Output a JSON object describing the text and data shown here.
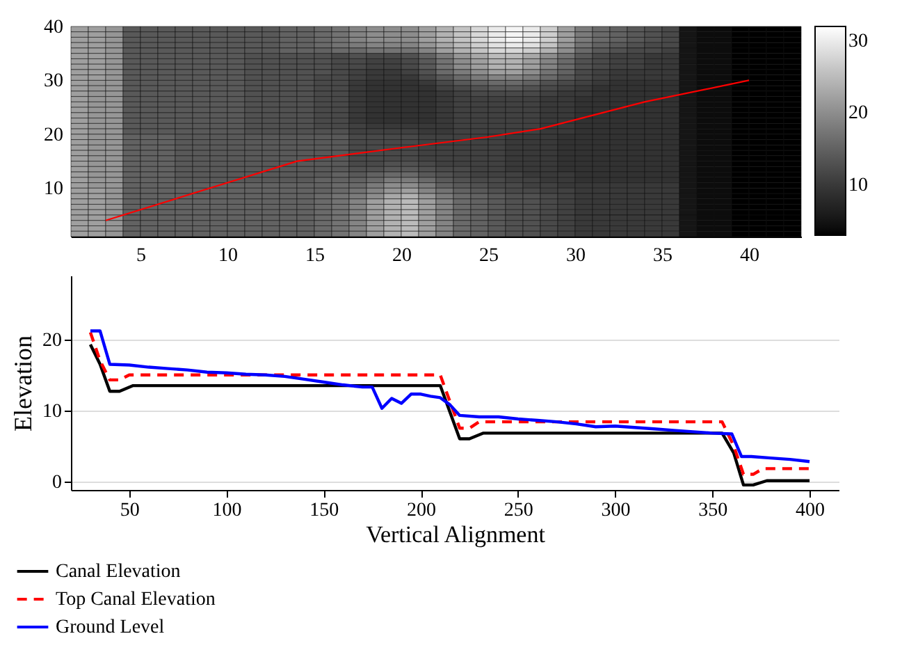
{
  "chart_data": [
    {
      "type": "heatmap",
      "xlim": [
        1,
        43
      ],
      "ylim": [
        1,
        40
      ],
      "xticks": [
        5,
        10,
        15,
        20,
        25,
        30,
        35,
        40
      ],
      "yticks": [
        10,
        20,
        30,
        40
      ],
      "clim": [
        3,
        32
      ],
      "cticks": [
        10,
        20,
        30
      ],
      "cells": [
        [
          22,
          22,
          21,
          14,
          14,
          14,
          14,
          14,
          14,
          14,
          14,
          14,
          15,
          15,
          16,
          17,
          19,
          20,
          20,
          20,
          22,
          24,
          26,
          28,
          30,
          31,
          30,
          27,
          22,
          18,
          16,
          15,
          14,
          13,
          12,
          5,
          4,
          4,
          3,
          3,
          3,
          3
        ],
        [
          22,
          22,
          21,
          14,
          14,
          14,
          14,
          14,
          14,
          14,
          14,
          14,
          15,
          15,
          16,
          17,
          19,
          20,
          20,
          20,
          22,
          24,
          26,
          28,
          30,
          31,
          30,
          27,
          22,
          18,
          16,
          15,
          14,
          13,
          12,
          5,
          4,
          4,
          3,
          3,
          3,
          3
        ],
        [
          22,
          22,
          21,
          14,
          14,
          14,
          14,
          14,
          14,
          14,
          14,
          14,
          15,
          15,
          16,
          17,
          19,
          20,
          20,
          20,
          22,
          24,
          26,
          28,
          30,
          31,
          30,
          27,
          22,
          18,
          16,
          15,
          14,
          13,
          12,
          5,
          4,
          4,
          3,
          3,
          3,
          3
        ],
        [
          22,
          22,
          21,
          14,
          14,
          14,
          14,
          14,
          14,
          14,
          14,
          14,
          15,
          15,
          16,
          17,
          18,
          19,
          19,
          19,
          21,
          23,
          25,
          27,
          29,
          30,
          29,
          26,
          21,
          17,
          15,
          14,
          13,
          12,
          12,
          5,
          4,
          4,
          3,
          3,
          3,
          3
        ],
        [
          22,
          22,
          21,
          14,
          14,
          14,
          14,
          14,
          14,
          14,
          14,
          14,
          15,
          15,
          15,
          16,
          16,
          17,
          17,
          17,
          19,
          22,
          24,
          26,
          28,
          28,
          27,
          24,
          20,
          16,
          14,
          13,
          12,
          12,
          11,
          5,
          4,
          4,
          3,
          3,
          3,
          3
        ],
        [
          22,
          22,
          21,
          14,
          14,
          14,
          14,
          14,
          14,
          14,
          13,
          13,
          13,
          13,
          13,
          12,
          13,
          12,
          12,
          13,
          15,
          18,
          21,
          23,
          25,
          25,
          23,
          20,
          17,
          14,
          12,
          11,
          11,
          10,
          10,
          5,
          4,
          4,
          3,
          3,
          3,
          3
        ],
        [
          22,
          22,
          21,
          14,
          14,
          14,
          14,
          14,
          14,
          14,
          13,
          13,
          13,
          13,
          13,
          12,
          12,
          11,
          11,
          12,
          14,
          17,
          20,
          22,
          24,
          24,
          22,
          19,
          16,
          13,
          12,
          11,
          11,
          10,
          10,
          5,
          4,
          4,
          3,
          3,
          3,
          3
        ],
        [
          22,
          22,
          21,
          14,
          14,
          14,
          14,
          14,
          14,
          14,
          13,
          13,
          13,
          13,
          13,
          12,
          12,
          11,
          11,
          12,
          14,
          17,
          20,
          22,
          24,
          24,
          22,
          19,
          16,
          13,
          12,
          11,
          11,
          10,
          10,
          5,
          4,
          4,
          3,
          3,
          3,
          3
        ],
        [
          22,
          22,
          21,
          14,
          14,
          14,
          14,
          14,
          14,
          14,
          13,
          13,
          13,
          13,
          13,
          12,
          11,
          10,
          10,
          11,
          13,
          16,
          18,
          20,
          22,
          22,
          20,
          17,
          15,
          12,
          11,
          10,
          10,
          10,
          10,
          5,
          4,
          4,
          3,
          3,
          3,
          3
        ],
        [
          22,
          22,
          21,
          14,
          14,
          14,
          14,
          14,
          14,
          14,
          13,
          13,
          13,
          13,
          12,
          12,
          11,
          10,
          10,
          10,
          12,
          14,
          16,
          18,
          19,
          19,
          18,
          16,
          14,
          12,
          11,
          10,
          10,
          10,
          10,
          5,
          4,
          4,
          3,
          3,
          3,
          3
        ],
        [
          22,
          21,
          21,
          14,
          14,
          14,
          14,
          14,
          14,
          14,
          13,
          13,
          13,
          13,
          12,
          12,
          10,
          9,
          9,
          9,
          10,
          12,
          14,
          15,
          16,
          16,
          15,
          13,
          12,
          11,
          10,
          9,
          9,
          9,
          9,
          5,
          4,
          4,
          3,
          3,
          3,
          3
        ],
        [
          22,
          21,
          21,
          14,
          14,
          14,
          14,
          14,
          14,
          14,
          13,
          13,
          13,
          13,
          12,
          12,
          10,
          9,
          9,
          9,
          9,
          11,
          12,
          13,
          14,
          14,
          13,
          12,
          11,
          10,
          9,
          9,
          9,
          9,
          9,
          5,
          4,
          4,
          3,
          3,
          3,
          3
        ],
        [
          22,
          21,
          21,
          14,
          14,
          14,
          14,
          14,
          14,
          14,
          13,
          13,
          13,
          13,
          12,
          12,
          10,
          9,
          9,
          9,
          9,
          10,
          11,
          12,
          12,
          12,
          12,
          11,
          10,
          10,
          9,
          9,
          9,
          9,
          9,
          5,
          4,
          4,
          3,
          3,
          3,
          3
        ],
        [
          22,
          21,
          21,
          14,
          14,
          14,
          14,
          14,
          14,
          14,
          13,
          13,
          13,
          13,
          12,
          12,
          10,
          9,
          9,
          9,
          9,
          10,
          11,
          11,
          11,
          11,
          11,
          10,
          10,
          9,
          9,
          9,
          9,
          9,
          9,
          5,
          4,
          4,
          3,
          3,
          3,
          3
        ],
        [
          22,
          21,
          21,
          14,
          14,
          14,
          14,
          14,
          14,
          14,
          13,
          13,
          13,
          13,
          12,
          12,
          10,
          9,
          9,
          9,
          9,
          10,
          11,
          11,
          11,
          11,
          11,
          10,
          10,
          9,
          9,
          9,
          9,
          9,
          9,
          5,
          4,
          4,
          3,
          3,
          3,
          3
        ],
        [
          22,
          21,
          21,
          14,
          14,
          14,
          14,
          14,
          14,
          14,
          13,
          13,
          13,
          13,
          12,
          12,
          10,
          9,
          9,
          9,
          9,
          10,
          11,
          11,
          11,
          11,
          11,
          10,
          10,
          9,
          9,
          9,
          9,
          9,
          9,
          5,
          4,
          4,
          3,
          3,
          3,
          3
        ],
        [
          22,
          21,
          21,
          14,
          14,
          14,
          14,
          14,
          14,
          14,
          13,
          13,
          13,
          13,
          12,
          12,
          10,
          9,
          9,
          9,
          9,
          10,
          11,
          11,
          11,
          11,
          11,
          10,
          10,
          9,
          9,
          9,
          9,
          9,
          9,
          5,
          4,
          4,
          3,
          3,
          3,
          3
        ],
        [
          22,
          21,
          21,
          14,
          14,
          14,
          14,
          14,
          14,
          14,
          13,
          13,
          13,
          13,
          12,
          12,
          10,
          9,
          9,
          9,
          9,
          10,
          11,
          11,
          11,
          11,
          11,
          10,
          10,
          9,
          9,
          9,
          9,
          9,
          9,
          5,
          4,
          4,
          3,
          3,
          3,
          3
        ],
        [
          22,
          21,
          21,
          14,
          14,
          14,
          14,
          14,
          14,
          14,
          13,
          13,
          13,
          13,
          12,
          12,
          11,
          10,
          10,
          10,
          10,
          10,
          11,
          11,
          11,
          11,
          11,
          10,
          10,
          9,
          9,
          9,
          9,
          9,
          9,
          5,
          4,
          4,
          3,
          3,
          3,
          3
        ],
        [
          22,
          21,
          21,
          14,
          14,
          14,
          14,
          14,
          14,
          14,
          13,
          13,
          13,
          13,
          13,
          13,
          11,
          11,
          11,
          11,
          10,
          10,
          11,
          11,
          11,
          11,
          11,
          10,
          10,
          9,
          9,
          9,
          9,
          9,
          9,
          5,
          4,
          4,
          3,
          3,
          3,
          3
        ],
        [
          22,
          21,
          21,
          15,
          15,
          15,
          14,
          14,
          14,
          14,
          14,
          14,
          14,
          14,
          14,
          14,
          12,
          12,
          12,
          12,
          11,
          11,
          11,
          11,
          11,
          10,
          10,
          10,
          9,
          9,
          9,
          9,
          9,
          9,
          9,
          5,
          4,
          4,
          3,
          3,
          3,
          3
        ],
        [
          22,
          21,
          21,
          15,
          15,
          15,
          14,
          14,
          14,
          14,
          14,
          14,
          14,
          14,
          14,
          14,
          12,
          12,
          12,
          12,
          11,
          11,
          11,
          11,
          11,
          10,
          10,
          10,
          9,
          9,
          9,
          9,
          9,
          9,
          9,
          5,
          4,
          4,
          3,
          3,
          3,
          3
        ],
        [
          22,
          21,
          21,
          15,
          15,
          15,
          14,
          14,
          14,
          14,
          14,
          14,
          14,
          14,
          14,
          14,
          12,
          12,
          12,
          12,
          11,
          11,
          11,
          11,
          11,
          10,
          10,
          10,
          9,
          9,
          9,
          9,
          9,
          9,
          9,
          5,
          4,
          4,
          3,
          3,
          3,
          3
        ],
        [
          22,
          21,
          21,
          15,
          15,
          15,
          14,
          14,
          14,
          14,
          14,
          14,
          14,
          14,
          14,
          14,
          12,
          12,
          12,
          12,
          11,
          11,
          11,
          11,
          11,
          10,
          10,
          10,
          9,
          9,
          9,
          9,
          9,
          9,
          9,
          5,
          4,
          4,
          3,
          3,
          3,
          3
        ],
        [
          22,
          21,
          21,
          15,
          15,
          15,
          14,
          14,
          14,
          14,
          14,
          14,
          14,
          14,
          14,
          14,
          12,
          12,
          12,
          12,
          11,
          11,
          11,
          11,
          11,
          10,
          10,
          10,
          9,
          9,
          9,
          9,
          9,
          9,
          9,
          5,
          4,
          4,
          3,
          3,
          3,
          3
        ],
        [
          22,
          21,
          21,
          15,
          15,
          15,
          14,
          14,
          14,
          14,
          14,
          14,
          14,
          14,
          14,
          14,
          12,
          12,
          13,
          13,
          12,
          11,
          11,
          11,
          11,
          10,
          10,
          10,
          9,
          9,
          9,
          9,
          9,
          9,
          9,
          5,
          4,
          4,
          3,
          3,
          3,
          3
        ],
        [
          22,
          21,
          21,
          15,
          15,
          15,
          14,
          14,
          14,
          14,
          14,
          14,
          14,
          14,
          14,
          14,
          13,
          13,
          14,
          14,
          13,
          12,
          12,
          11,
          11,
          10,
          10,
          10,
          9,
          9,
          9,
          9,
          9,
          9,
          9,
          5,
          4,
          4,
          3,
          3,
          3,
          3
        ],
        [
          22,
          21,
          21,
          15,
          15,
          15,
          14,
          14,
          14,
          14,
          14,
          14,
          14,
          14,
          14,
          15,
          14,
          15,
          16,
          16,
          14,
          13,
          12,
          11,
          11,
          11,
          10,
          10,
          10,
          9,
          9,
          9,
          9,
          9,
          9,
          5,
          4,
          4,
          3,
          3,
          3,
          3
        ],
        [
          22,
          21,
          21,
          15,
          15,
          15,
          14,
          14,
          14,
          14,
          14,
          14,
          14,
          14,
          15,
          15,
          15,
          16,
          18,
          18,
          16,
          14,
          13,
          12,
          12,
          11,
          11,
          10,
          10,
          9,
          9,
          9,
          9,
          9,
          9,
          5,
          4,
          4,
          3,
          3,
          3,
          3
        ],
        [
          22,
          21,
          21,
          15,
          15,
          15,
          15,
          15,
          15,
          15,
          15,
          15,
          15,
          15,
          15,
          16,
          16,
          18,
          20,
          20,
          18,
          15,
          14,
          13,
          12,
          12,
          11,
          11,
          10,
          10,
          10,
          10,
          10,
          10,
          10,
          5,
          4,
          4,
          3,
          3,
          3,
          3
        ],
        [
          22,
          22,
          21,
          15,
          15,
          15,
          15,
          15,
          15,
          15,
          15,
          15,
          15,
          15,
          15,
          16,
          17,
          19,
          21,
          22,
          19,
          17,
          15,
          14,
          13,
          12,
          12,
          11,
          11,
          10,
          10,
          10,
          10,
          10,
          10,
          5,
          4,
          4,
          3,
          3,
          3,
          3
        ],
        [
          22,
          22,
          21,
          15,
          15,
          15,
          15,
          15,
          15,
          15,
          15,
          15,
          15,
          15,
          16,
          17,
          18,
          20,
          23,
          24,
          21,
          18,
          16,
          15,
          14,
          13,
          13,
          12,
          11,
          10,
          10,
          10,
          10,
          10,
          10,
          5,
          4,
          4,
          3,
          3,
          3,
          3
        ],
        [
          22,
          22,
          21,
          15,
          15,
          15,
          15,
          15,
          15,
          15,
          15,
          15,
          15,
          15,
          16,
          17,
          19,
          22,
          24,
          25,
          22,
          19,
          16,
          15,
          14,
          13,
          13,
          12,
          11,
          10,
          10,
          10,
          10,
          10,
          10,
          5,
          4,
          4,
          3,
          3,
          3,
          3
        ],
        [
          22,
          22,
          21,
          15,
          15,
          15,
          15,
          15,
          15,
          15,
          15,
          15,
          15,
          15,
          16,
          17,
          19,
          22,
          24,
          25,
          22,
          19,
          16,
          15,
          14,
          13,
          13,
          12,
          11,
          10,
          10,
          10,
          10,
          10,
          10,
          5,
          4,
          4,
          3,
          3,
          3,
          3
        ],
        [
          22,
          22,
          21,
          15,
          15,
          15,
          15,
          15,
          15,
          15,
          15,
          15,
          15,
          15,
          16,
          17,
          19,
          22,
          24,
          25,
          22,
          19,
          16,
          15,
          14,
          13,
          13,
          12,
          11,
          10,
          10,
          10,
          10,
          10,
          10,
          5,
          4,
          4,
          3,
          3,
          3,
          3
        ],
        [
          22,
          22,
          21,
          15,
          15,
          15,
          15,
          15,
          15,
          15,
          15,
          15,
          15,
          15,
          16,
          17,
          19,
          22,
          24,
          25,
          22,
          19,
          16,
          15,
          14,
          13,
          13,
          12,
          11,
          10,
          10,
          10,
          10,
          10,
          10,
          5,
          4,
          4,
          3,
          3,
          3,
          3
        ],
        [
          22,
          22,
          21,
          15,
          15,
          15,
          15,
          15,
          15,
          15,
          15,
          15,
          15,
          15,
          16,
          17,
          19,
          22,
          24,
          25,
          22,
          19,
          16,
          15,
          14,
          13,
          13,
          12,
          11,
          10,
          10,
          10,
          10,
          10,
          10,
          5,
          4,
          4,
          3,
          3,
          3,
          3
        ],
        [
          22,
          22,
          21,
          15,
          15,
          15,
          15,
          15,
          15,
          15,
          15,
          15,
          15,
          15,
          16,
          17,
          19,
          22,
          24,
          25,
          22,
          19,
          16,
          15,
          14,
          13,
          13,
          12,
          11,
          10,
          10,
          10,
          10,
          10,
          10,
          5,
          4,
          4,
          3,
          3,
          3,
          3
        ],
        [
          22,
          22,
          21,
          15,
          15,
          15,
          15,
          15,
          15,
          15,
          15,
          15,
          15,
          15,
          16,
          17,
          19,
          22,
          24,
          25,
          22,
          19,
          16,
          15,
          14,
          13,
          13,
          12,
          11,
          10,
          10,
          10,
          10,
          10,
          10,
          5,
          4,
          4,
          3,
          3,
          3,
          3
        ]
      ],
      "series": [
        {
          "type": "line",
          "color": "#ff0000",
          "x": [
            3,
            9,
            14,
            20,
            25,
            28,
            34,
            40
          ],
          "values": [
            4,
            10,
            15,
            17.5,
            19.5,
            21,
            26,
            30
          ]
        }
      ]
    },
    {
      "type": "line",
      "xlabel": "Vertical Alignment",
      "ylabel": "Elevation",
      "xlim": [
        20,
        415
      ],
      "ylim": [
        -1.2,
        29
      ],
      "xticks": [
        50,
        100,
        150,
        200,
        250,
        300,
        350,
        400
      ],
      "yticks": [
        0,
        10,
        20
      ],
      "grid": "y",
      "legend": "bottom",
      "series": [
        {
          "name": "Canal Elevation",
          "color": "#000000",
          "line_style": "solid",
          "x": [
            30,
            35,
            40,
            45,
            52,
            210,
            220,
            225,
            232,
            355,
            361,
            366,
            371,
            378,
            400
          ],
          "values": [
            19.3,
            16.5,
            12.7,
            12.7,
            13.5,
            13.5,
            6,
            6,
            6.8,
            6.8,
            4,
            -0.5,
            -0.5,
            0.1,
            0.1
          ]
        },
        {
          "name": "Top Canal Elevation",
          "color": "#ff0000",
          "line_style": "dashed",
          "x": [
            30,
            35,
            40,
            45,
            50,
            210,
            220,
            225,
            230,
            355,
            361,
            366,
            371,
            376,
            400
          ],
          "values": [
            21,
            17,
            14.3,
            14.3,
            15,
            15,
            7.5,
            7.5,
            8.4,
            8.4,
            5,
            1,
            1,
            1.8,
            1.8
          ]
        },
        {
          "name": "Ground Level",
          "color": "#0000ff",
          "line_style": "solid",
          "x": [
            30,
            35,
            40,
            50,
            60,
            70,
            80,
            90,
            100,
            110,
            120,
            130,
            140,
            150,
            160,
            170,
            175,
            180,
            185,
            190,
            195,
            200,
            205,
            210,
            215,
            220,
            230,
            240,
            250,
            260,
            270,
            280,
            290,
            300,
            310,
            320,
            330,
            340,
            350,
            360,
            365,
            370,
            380,
            390,
            400
          ],
          "values": [
            21.2,
            21.2,
            16.5,
            16.4,
            16.1,
            15.9,
            15.7,
            15.4,
            15.3,
            15.1,
            15,
            14.8,
            14.4,
            14,
            13.6,
            13.3,
            13.3,
            10.3,
            11.7,
            11,
            12.3,
            12.3,
            12,
            11.8,
            10.8,
            9.3,
            9.1,
            9.1,
            8.8,
            8.6,
            8.4,
            8.1,
            7.7,
            7.8,
            7.6,
            7.4,
            7.2,
            7,
            6.8,
            6.7,
            3.5,
            3.5,
            3.3,
            3.1,
            2.8
          ]
        }
      ]
    }
  ]
}
